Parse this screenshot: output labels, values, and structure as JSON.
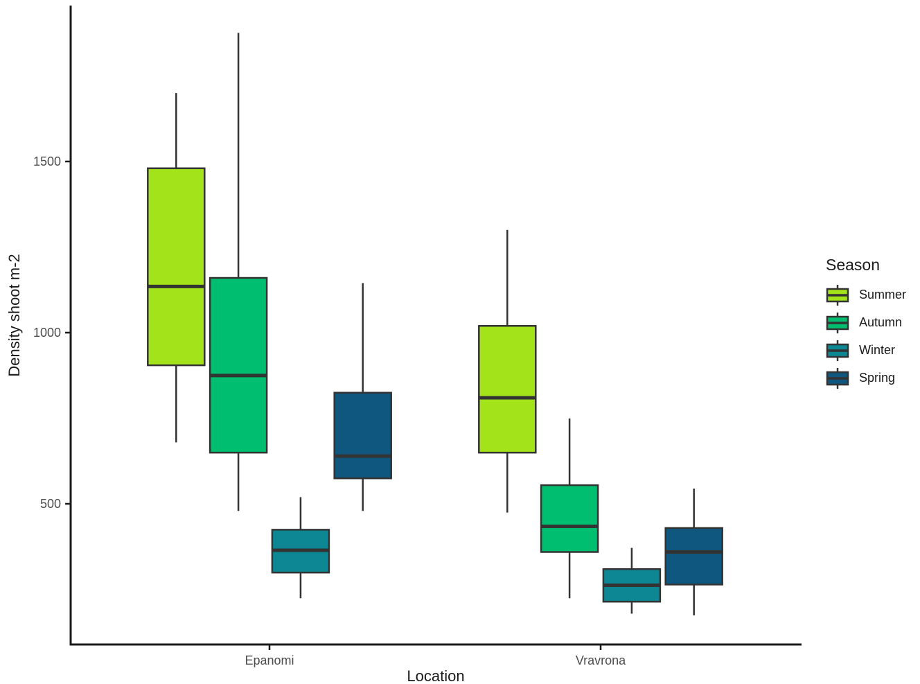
{
  "chart_data": {
    "type": "boxplot",
    "title": "",
    "xlabel": "Location",
    "ylabel": "Density shoot m-2",
    "categories": [
      "Epanomi",
      "Vravrona"
    ],
    "y_ticks": [
      500,
      1000,
      1500
    ],
    "ylim": [
      90,
      1955
    ],
    "grid": false,
    "legend_title": "Season",
    "legend_position": "right",
    "colors": {
      "box_border": "#333333",
      "axis_line": "#1a1a1a",
      "tick_label": "#4d4d4d"
    },
    "series": [
      {
        "name": "Summer",
        "color": "#A3E31A",
        "boxes": [
          {
            "category": "Epanomi",
            "whisker_low": 680,
            "q1": 905,
            "median": 1135,
            "q3": 1480,
            "whisker_high": 1700
          },
          {
            "category": "Vravrona",
            "whisker_low": 475,
            "q1": 650,
            "median": 810,
            "q3": 1020,
            "whisker_high": 1300
          }
        ]
      },
      {
        "name": "Autumn",
        "color": "#00BE6F",
        "boxes": [
          {
            "category": "Epanomi",
            "whisker_low": 480,
            "q1": 650,
            "median": 875,
            "q3": 1160,
            "whisker_high": 1875
          },
          {
            "category": "Vravrona",
            "whisker_low": 225,
            "q1": 360,
            "median": 435,
            "q3": 555,
            "whisker_high": 750
          }
        ]
      },
      {
        "name": "Winter",
        "color": "#0D8793",
        "boxes": [
          {
            "category": "Epanomi",
            "whisker_low": 225,
            "q1": 300,
            "median": 365,
            "q3": 425,
            "whisker_high": 520
          },
          {
            "category": "Vravrona",
            "whisker_low": 180,
            "q1": 215,
            "median": 263,
            "q3": 310,
            "whisker_high": 372
          }
        ]
      },
      {
        "name": "Spring",
        "color": "#10577F",
        "boxes": [
          {
            "category": "Epanomi",
            "whisker_low": 480,
            "q1": 575,
            "median": 640,
            "q3": 825,
            "whisker_high": 1145
          },
          {
            "category": "Vravrona",
            "whisker_low": 175,
            "q1": 265,
            "median": 360,
            "q3": 430,
            "whisker_high": 545
          }
        ]
      }
    ]
  }
}
